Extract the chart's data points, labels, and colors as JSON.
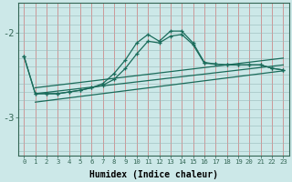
{
  "bg_color": "#cce8e8",
  "line_color": "#1a6b5a",
  "red_grid_color": "#cc7777",
  "grey_grid_color": "#99bbbb",
  "xlabel": "Humidex (Indice chaleur)",
  "xlim": [
    -0.5,
    23.5
  ],
  "ylim": [
    -3.45,
    -1.65
  ],
  "yticks": [
    -3.0,
    -2.0
  ],
  "ytick_labels": [
    "-3",
    "-2"
  ],
  "xticks": [
    0,
    1,
    2,
    3,
    4,
    5,
    6,
    7,
    8,
    9,
    10,
    11,
    12,
    13,
    14,
    15,
    16,
    17,
    18,
    19,
    20,
    21,
    22,
    23
  ],
  "series_zigzag1_x": [
    0,
    1,
    2,
    3,
    4,
    5,
    6,
    7,
    8,
    9,
    10,
    11,
    12,
    13,
    14,
    15,
    16,
    17,
    18,
    19,
    20,
    21,
    22,
    23
  ],
  "series_zigzag1_y": [
    -2.28,
    -2.72,
    -2.72,
    -2.72,
    -2.7,
    -2.68,
    -2.65,
    -2.6,
    -2.48,
    -2.32,
    -2.12,
    -2.02,
    -2.1,
    -1.98,
    -1.98,
    -2.12,
    -2.35,
    -2.37,
    -2.38,
    -2.38,
    -2.38,
    -2.38,
    -2.42,
    -2.44
  ],
  "series_zigzag2_x": [
    0,
    1,
    2,
    3,
    4,
    5,
    6,
    7,
    8,
    9,
    10,
    11,
    12,
    13,
    14,
    15,
    16,
    17,
    18,
    19,
    20,
    21,
    22,
    23
  ],
  "series_zigzag2_y": [
    -2.28,
    -2.72,
    -2.72,
    -2.72,
    -2.7,
    -2.68,
    -2.65,
    -2.62,
    -2.55,
    -2.42,
    -2.25,
    -2.1,
    -2.12,
    -2.04,
    -2.02,
    -2.14,
    -2.36,
    -2.37,
    -2.38,
    -2.38,
    -2.38,
    -2.38,
    -2.42,
    -2.44
  ],
  "series_line1_x": [
    1,
    23
  ],
  "series_line1_y": [
    -2.65,
    -2.3
  ],
  "series_line2_x": [
    1,
    23
  ],
  "series_line2_y": [
    -2.72,
    -2.38
  ],
  "series_line3_x": [
    1,
    23
  ],
  "series_line3_y": [
    -2.82,
    -2.45
  ]
}
